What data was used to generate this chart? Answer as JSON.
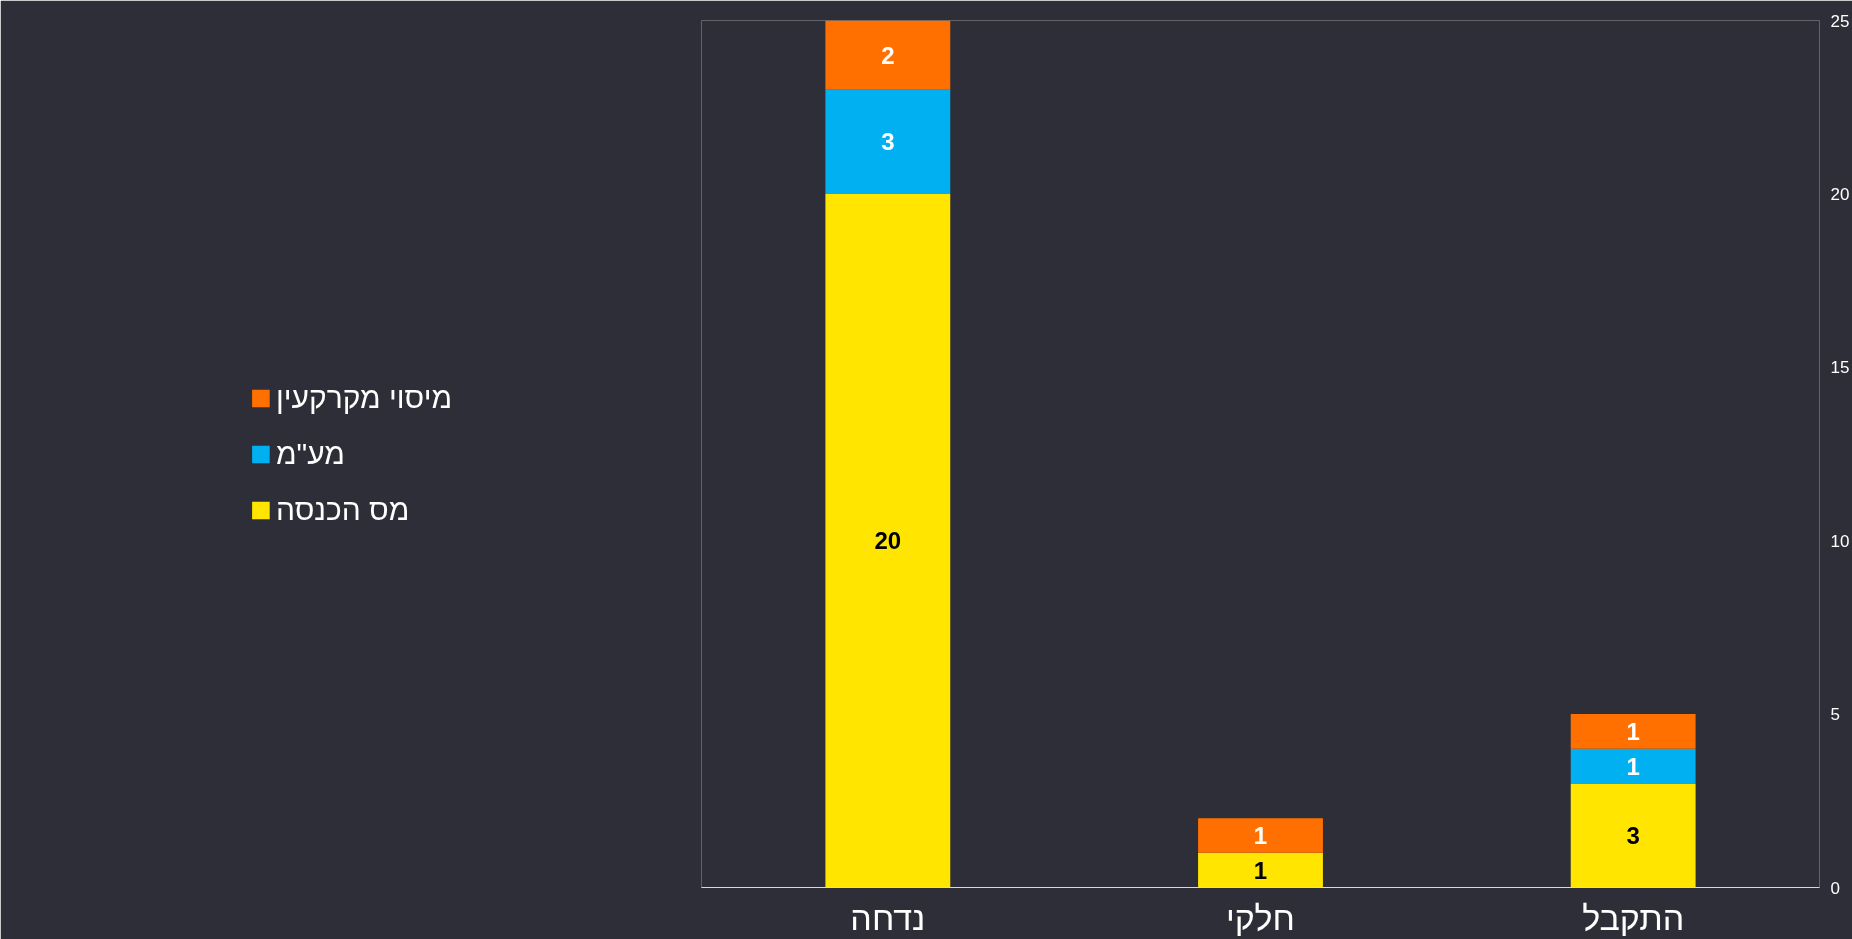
{
  "chart_data": {
    "type": "bar",
    "stacked": true,
    "categories": [
      "נדחה",
      "חלקי",
      "התקבל"
    ],
    "series": [
      {
        "name": "מס הכנסה",
        "color": "#ffe500",
        "values": [
          20,
          1,
          3
        ]
      },
      {
        "name": "מע\"מ",
        "color": "#00b0f0",
        "values": [
          3,
          null,
          1
        ]
      },
      {
        "name": "מיסוי מקרקעין",
        "color": "#ff7000",
        "values": [
          2,
          1,
          1
        ]
      }
    ],
    "ylim": [
      0,
      25
    ],
    "yticks": [
      0,
      5,
      10,
      15,
      20,
      25
    ],
    "grid": false,
    "legend": "left",
    "data_labels": true
  }
}
